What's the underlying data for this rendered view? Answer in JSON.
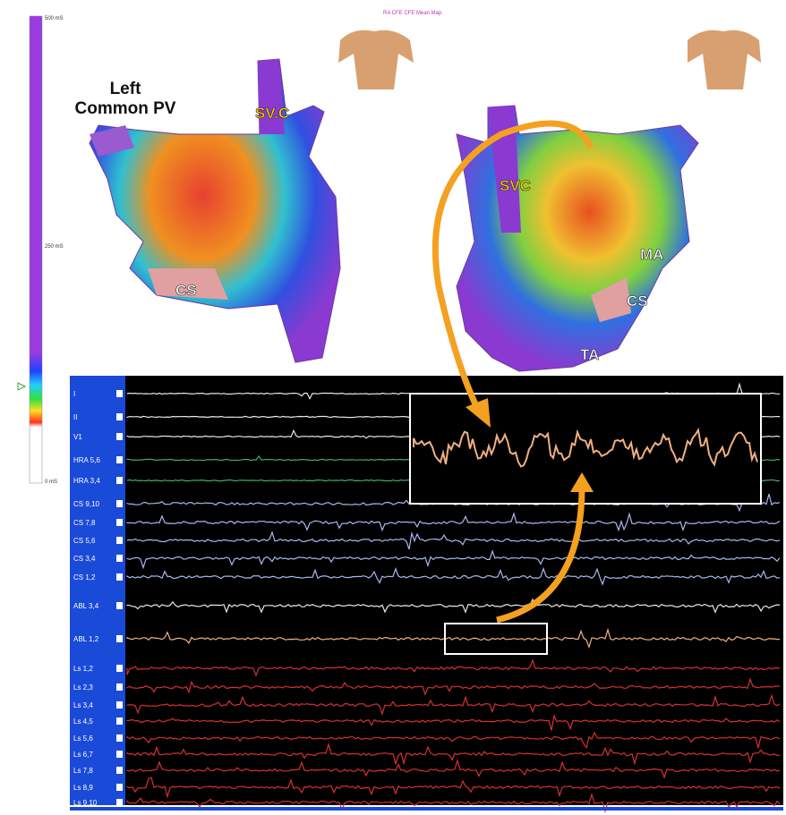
{
  "scale": {
    "labels": [
      "500 mS",
      "250 mS",
      "0 mS"
    ]
  },
  "map_title": "RA CFE CFE Mean Map",
  "left_map": {
    "labels": [
      "Left\nCommon PV",
      "SV.C",
      "CS"
    ]
  },
  "right_map": {
    "labels": [
      "SVC",
      "MA",
      "CS",
      "TA"
    ]
  },
  "channels": [
    {
      "label": "I",
      "color": "#e8e8e8"
    },
    {
      "label": "II",
      "color": "#e8e8e8"
    },
    {
      "label": "V1",
      "color": "#e8e8e8"
    },
    {
      "label": "HRA 5,6",
      "color": "#3fae6a"
    },
    {
      "label": "HRA 3,4",
      "color": "#3fae6a"
    },
    {
      "label": "CS 9,10",
      "color": "#a8b8f0"
    },
    {
      "label": "CS 7,8",
      "color": "#a8b8f0"
    },
    {
      "label": "CS 5,6",
      "color": "#a8b8f0"
    },
    {
      "label": "CS 3,4",
      "color": "#a8b8f0"
    },
    {
      "label": "CS 1,2",
      "color": "#a8b8f0"
    },
    {
      "label": "ABL 3,4",
      "color": "#e8e8e8"
    },
    {
      "label": "ABL 1,2",
      "color": "#f0b080"
    },
    {
      "label": "Ls 1,2",
      "color": "#d83030"
    },
    {
      "label": "Ls 2,3",
      "color": "#d83030"
    },
    {
      "label": "Ls 3,4",
      "color": "#d83030"
    },
    {
      "label": "Ls 4,5",
      "color": "#d83030"
    },
    {
      "label": "Ls 5,6",
      "color": "#d83030"
    },
    {
      "label": "Ls 6,7",
      "color": "#d83030"
    },
    {
      "label": "Ls 7,8",
      "color": "#d83030"
    },
    {
      "label": "Ls 8,9",
      "color": "#d83030"
    },
    {
      "label": "Ls 9,10",
      "color": "#d83030"
    }
  ]
}
